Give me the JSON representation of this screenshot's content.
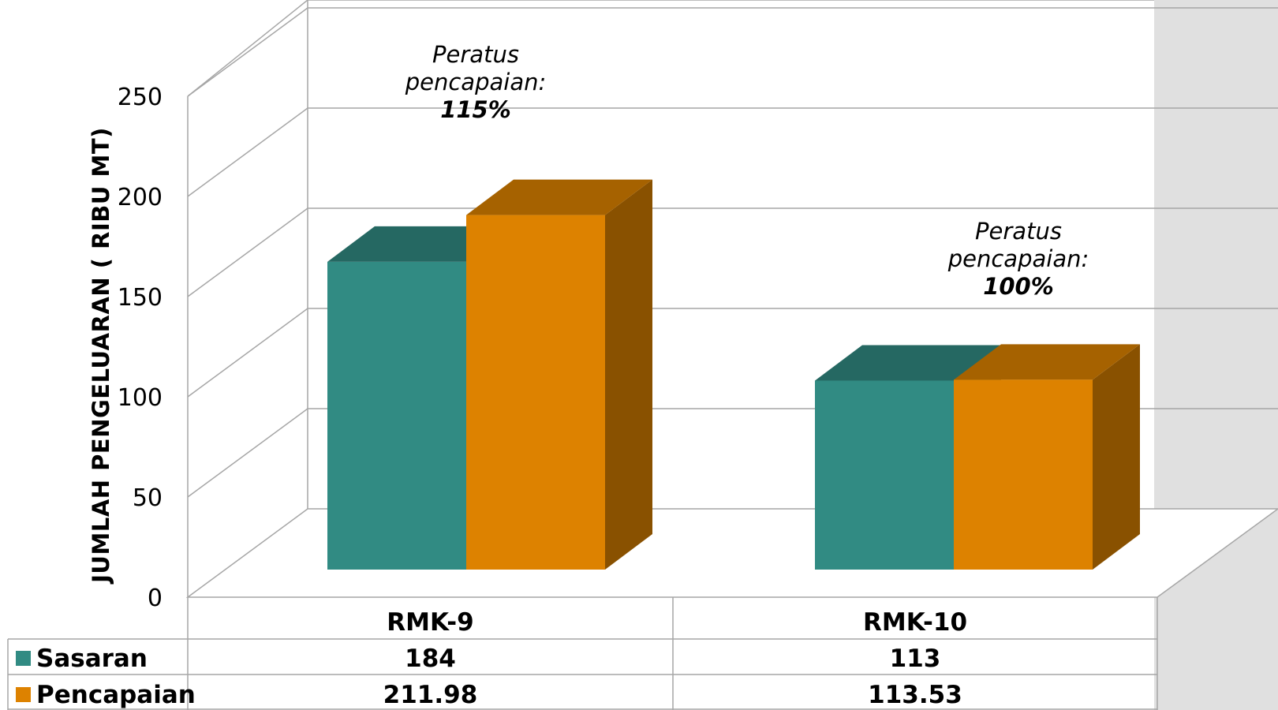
{
  "chart_data": {
    "type": "bar",
    "ylabel": "JUMLAH PENGELUARAN ( RIBU MT)",
    "xlabel": "",
    "ylim": [
      0,
      250
    ],
    "yticks": [
      0,
      50,
      100,
      150,
      200,
      250
    ],
    "categories": [
      "RMK-9",
      "RMK-10"
    ],
    "series": [
      {
        "name": "Sasaran",
        "values": [
          184,
          113
        ],
        "labels": [
          "184",
          "113"
        ],
        "color": "#318b83"
      },
      {
        "name": "Pencapaian",
        "values": [
          211.98,
          113.53
        ],
        "labels": [
          "211.98",
          "113.53"
        ],
        "color": "#dd8200"
      }
    ],
    "annotations": [
      {
        "category": "RMK-9",
        "line1": "Peratus",
        "line2": "pencapaian:",
        "value": "115%"
      },
      {
        "category": "RMK-10",
        "line1": "Peratus",
        "line2": "pencapaian:",
        "value": "100%"
      }
    ],
    "legend": "data-table",
    "grid": true,
    "style": "3d-clustered-bar"
  }
}
